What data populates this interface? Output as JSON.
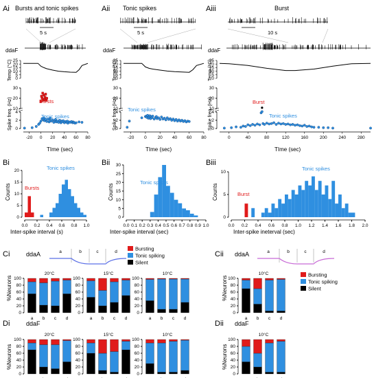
{
  "colors": {
    "burst": "#e01b1b",
    "tonic": "#2f8fe0",
    "silent": "#000000",
    "pointFill": "#2f8fe0",
    "pointStroke": "#0a3f7a",
    "ddaA_trace": "#5b6fe6",
    "ddaA_trace_cii": "#c86bd6"
  },
  "panels": {
    "Ai": {
      "tag": "Ai",
      "title": "Bursts and tonic spikes",
      "scale": "5 s",
      "ddaf": "ddaF",
      "tempLabel": "Temp (°C)",
      "freqLabel": "Spike freq. (Hz)",
      "xlabel": "TIme (sec)",
      "burstsText": "Bursts",
      "tonicText": "Tonic spikes"
    },
    "Aii": {
      "tag": "Aii",
      "title": "Tonic spikes",
      "scale": "5 s",
      "ddaf": "ddaF",
      "tempLabel": "Temp (°C)",
      "freqLabel": "Spike freq. (Hz)",
      "xlabel": "TIme (sec)",
      "tonicText": "Tonic spikes"
    },
    "Aiii": {
      "tag": "Aiii",
      "title": "Burst",
      "scale": "10 s",
      "ddaf": "ddaF",
      "tempLabel": "Temp (°C)",
      "freqLabel": "Spike freq. (Hz)",
      "xlabel": "TIme (sec)",
      "burstText": "Burst",
      "tonicText": "Tonic spikes"
    },
    "Bi": {
      "tag": "Bi",
      "ylabel": "Counts",
      "xlabel": "Inter-spike interval (s)",
      "burstsText": "Bursts",
      "tonicText": "Tonic spikes"
    },
    "Bii": {
      "tag": "Bii",
      "ylabel": "Counts",
      "xlabel": "Inter-spike interval (sec)",
      "tonicText": "Tonic spikes"
    },
    "Biii": {
      "tag": "Biii",
      "ylabel": "Counts",
      "xlabel": "Inter-spike ineterval (sec)",
      "burstText": "Burst",
      "tonicText": "Tonic spikes"
    },
    "Ci": {
      "tag": "Ci",
      "cell": "ddaA"
    },
    "Cii": {
      "tag": "Cii",
      "cell": "ddaA"
    },
    "Di": {
      "tag": "Di",
      "cell": "ddaF"
    },
    "Dii": {
      "tag": "Dii",
      "cell": "ddaF"
    }
  },
  "legend": {
    "bursting": "Bursting",
    "tonic": "Tonic spiking",
    "silent": "Silent"
  },
  "ylabelPct": "%Neurons",
  "phases": [
    "a",
    "b",
    "c",
    "d"
  ],
  "chart_data": [
    {
      "id": "Ai-temp",
      "type": "line",
      "xlim": [
        -30,
        80
      ],
      "ylim": [
        0,
        25
      ],
      "ylabel": "Temp (°C)",
      "x": [
        -30,
        -5,
        0,
        5,
        10,
        20,
        30,
        40,
        50,
        60,
        65,
        70,
        80
      ],
      "y": [
        21,
        21,
        17,
        15,
        13.5,
        11.5,
        10,
        9.2,
        8.7,
        8.5,
        12,
        18,
        21
      ]
    },
    {
      "id": "Ai-freq",
      "type": "scatter",
      "xlim": [
        -30,
        80
      ],
      "ylabel": "Spike freq. (Hz)",
      "xlabel": "TIme (sec)",
      "bursts": {
        "x": [
          0,
          1,
          2,
          3,
          4,
          5,
          6,
          7,
          8,
          9,
          10
        ],
        "y": [
          17,
          22,
          20,
          25,
          18,
          23,
          19,
          21,
          24,
          18,
          20
        ]
      },
      "tonic": {
        "x": [
          -28,
          -15,
          -8,
          -4,
          -2,
          0,
          2,
          4,
          5,
          6,
          8,
          10,
          12,
          14,
          15,
          16,
          18,
          20,
          22,
          24,
          25,
          26,
          28,
          30,
          32,
          34,
          35,
          36,
          38,
          40,
          42,
          44,
          45,
          46,
          48,
          50,
          52,
          54,
          55,
          56,
          58,
          60,
          65,
          70
        ],
        "y": [
          0.1,
          0.2,
          0.5,
          1.0,
          1.3,
          1.8,
          2.4,
          2.1,
          2.6,
          1.9,
          2.2,
          1.7,
          2.3,
          1.6,
          2.0,
          2.5,
          1.8,
          2.1,
          1.5,
          1.9,
          2.2,
          1.6,
          1.8,
          1.5,
          2.0,
          1.4,
          1.8,
          1.6,
          1.9,
          1.4,
          1.7,
          1.5,
          1.8,
          1.3,
          1.6,
          1.5,
          1.7,
          1.4,
          1.6,
          1.5,
          1.3,
          1.4,
          1.6,
          1.5
        ]
      },
      "xticks": [
        -20,
        0,
        20,
        40,
        60,
        80
      ]
    },
    {
      "id": "Aii-temp",
      "type": "line",
      "xlim": [
        -30,
        80
      ],
      "ylim": [
        0,
        25
      ],
      "x": [
        -30,
        -5,
        0,
        5,
        10,
        20,
        30,
        40,
        50,
        60,
        65,
        70,
        80
      ],
      "y": [
        21,
        21,
        16,
        14,
        13,
        11.5,
        10.2,
        9.3,
        8.8,
        8.5,
        12,
        18,
        21
      ]
    },
    {
      "id": "Aii-freq",
      "type": "scatter",
      "xlim": [
        -30,
        80
      ],
      "xticks": [
        -20,
        0,
        20,
        40,
        60,
        80
      ],
      "tonic": {
        "x": [
          -25,
          -22,
          -5,
          0,
          1,
          2,
          3,
          4,
          5,
          6,
          7,
          8,
          9,
          10,
          12,
          14,
          15,
          16,
          18,
          20,
          22,
          24,
          26,
          28,
          30,
          32,
          34,
          36,
          38,
          40,
          42,
          44,
          46,
          48,
          50,
          52,
          54,
          56,
          58,
          60
        ],
        "y": [
          0.3,
          1.8,
          2.6,
          2.9,
          3.0,
          2.7,
          3.2,
          2.5,
          2.8,
          3.1,
          2.4,
          2.9,
          2.6,
          3.0,
          2.3,
          2.7,
          2.9,
          2.4,
          2.6,
          2.2,
          2.8,
          2.3,
          2.5,
          2.1,
          2.6,
          2.2,
          2.4,
          2.0,
          2.3,
          1.9,
          2.2,
          1.8,
          2.1,
          1.8,
          2.0,
          1.7,
          1.9,
          1.6,
          1.8,
          1.7
        ]
      }
    },
    {
      "id": "Aiii-temp",
      "type": "line",
      "xlim": [
        -20,
        300
      ],
      "ylim": [
        0,
        25
      ],
      "x": [
        -20,
        0,
        40,
        80,
        120,
        140,
        180,
        220,
        260,
        300
      ],
      "y": [
        21,
        20.5,
        18,
        14,
        11,
        11,
        13,
        17,
        20.5,
        21
      ]
    },
    {
      "id": "Aiii-freq",
      "type": "scatter",
      "xlim": [
        -20,
        300
      ],
      "xticks": [
        0,
        40,
        80,
        120,
        160,
        200,
        240,
        280
      ],
      "burst": {
        "x": [
          70
        ],
        "y": [
          5.5
        ]
      },
      "tonic": {
        "x": [
          -10,
          5,
          15,
          25,
          30,
          35,
          40,
          45,
          50,
          55,
          60,
          65,
          68,
          70,
          72,
          75,
          80,
          85,
          90,
          95,
          100,
          105,
          110,
          115,
          120,
          125,
          130,
          135,
          140,
          145,
          150,
          155,
          160,
          165,
          170,
          175,
          180,
          190,
          200,
          210,
          220,
          300
        ],
        "y": [
          0.1,
          0.2,
          0.4,
          0.3,
          0.6,
          0.5,
          0.9,
          0.7,
          1.0,
          0.8,
          1.1,
          0.9,
          3.8,
          4.1,
          1.2,
          1.0,
          1.3,
          1.1,
          1.2,
          1.4,
          1.0,
          1.3,
          1.1,
          1.2,
          1.0,
          1.1,
          0.9,
          1.0,
          0.8,
          0.9,
          0.7,
          0.6,
          0.8,
          0.5,
          0.6,
          0.4,
          0.3,
          0.3,
          0.2,
          0.2,
          0.1,
          0.1
        ]
      }
    },
    {
      "id": "Bi",
      "type": "bar",
      "xlim": [
        0,
        1.0
      ],
      "ylim": [
        0,
        20
      ],
      "binWidth": 0.05,
      "burst": {
        "x": [
          0.0,
          0.05,
          0.1
        ],
        "y": [
          2,
          9,
          2
        ]
      },
      "tonic": {
        "x": [
          0.25,
          0.4,
          0.45,
          0.5,
          0.55,
          0.6,
          0.65,
          0.7,
          0.75,
          0.8,
          0.85,
          0.9,
          0.95
        ],
        "y": [
          1,
          2,
          4,
          6,
          10,
          14,
          16,
          12,
          9,
          6,
          4,
          2,
          1
        ]
      },
      "xticks": [
        0.0,
        0.2,
        0.4,
        0.6,
        0.8,
        1.0
      ],
      "yticks": [
        0,
        5,
        10,
        15,
        20
      ]
    },
    {
      "id": "Bii",
      "type": "bar",
      "xlim": [
        0,
        1.0
      ],
      "ylim": [
        0,
        30
      ],
      "binWidth": 0.05,
      "tonic": {
        "x": [
          0.3,
          0.35,
          0.4,
          0.45,
          0.5,
          0.55,
          0.6,
          0.65,
          0.7,
          0.75,
          0.8,
          0.85
        ],
        "y": [
          3,
          13,
          23,
          30,
          18,
          14,
          10,
          8,
          5,
          4,
          2,
          1
        ]
      },
      "xticks": [
        0.0,
        0.1,
        0.2,
        0.3,
        0.4,
        0.5,
        0.6,
        0.7,
        0.8,
        0.9,
        1.0
      ],
      "yticks": [
        0,
        5,
        10,
        15,
        20,
        25,
        30
      ]
    },
    {
      "id": "Biii",
      "type": "bar",
      "xlim": [
        0,
        2.0
      ],
      "ylim": [
        0,
        10
      ],
      "binWidth": 0.05,
      "burst": {
        "x": [
          0.2
        ],
        "y": [
          3
        ]
      },
      "tonic": {
        "x": [
          0.3,
          0.45,
          0.5,
          0.55,
          0.6,
          0.65,
          0.7,
          0.75,
          0.8,
          0.85,
          0.9,
          0.95,
          1.0,
          1.05,
          1.1,
          1.15,
          1.2,
          1.25,
          1.3,
          1.35,
          1.4,
          1.45,
          1.5,
          1.55,
          1.6,
          1.65,
          1.7,
          1.75,
          1.8
        ],
        "y": [
          2,
          1,
          2,
          1,
          3,
          2,
          4,
          3,
          5,
          4,
          6,
          5,
          7,
          6,
          8,
          7,
          9,
          6,
          8,
          5,
          7,
          4,
          8,
          3,
          5,
          2,
          3,
          1,
          1
        ]
      },
      "xticks": [
        0,
        0.2,
        0.4,
        0.6,
        0.8,
        1.0,
        1.2,
        1.4,
        1.6,
        1.8,
        2.0
      ],
      "yticks": [
        0,
        5,
        10
      ]
    },
    {
      "id": "Ci-20",
      "type": "bar",
      "title": "20°C",
      "stack": {
        "silent": [
          55,
          22,
          20,
          55
        ],
        "tonic": [
          35,
          65,
          72,
          40
        ],
        "burst": [
          10,
          13,
          8,
          5
        ]
      }
    },
    {
      "id": "Ci-15",
      "type": "bar",
      "title": "15°C",
      "stack": {
        "silent": [
          45,
          20,
          30,
          50
        ],
        "tonic": [
          48,
          45,
          60,
          45
        ],
        "burst": [
          7,
          35,
          10,
          5
        ]
      }
    },
    {
      "id": "Ci-10",
      "type": "bar",
      "title": "10°C",
      "stack": {
        "silent": [
          35,
          10,
          10,
          30
        ],
        "tonic": [
          62,
          88,
          88,
          68
        ],
        "burst": [
          3,
          2,
          2,
          2
        ]
      }
    },
    {
      "id": "Cii-10",
      "type": "bar",
      "title": "10°C",
      "stack": {
        "silent": [
          70,
          25,
          5,
          5
        ],
        "tonic": [
          25,
          45,
          90,
          92
        ],
        "burst": [
          5,
          30,
          5,
          3
        ]
      }
    },
    {
      "id": "Di-20",
      "type": "bar",
      "title": "20°C",
      "stack": {
        "silent": [
          70,
          20,
          15,
          35
        ],
        "tonic": [
          20,
          65,
          70,
          62
        ],
        "burst": [
          10,
          15,
          15,
          3
        ]
      }
    },
    {
      "id": "Di-15",
      "type": "bar",
      "title": "15°C",
      "stack": {
        "silent": [
          60,
          10,
          5,
          70
        ],
        "tonic": [
          30,
          50,
          60,
          25
        ],
        "burst": [
          10,
          40,
          35,
          5
        ]
      }
    },
    {
      "id": "Di-10",
      "type": "bar",
      "title": "10°C",
      "stack": {
        "silent": [
          30,
          5,
          5,
          10
        ],
        "tonic": [
          60,
          85,
          90,
          88
        ],
        "burst": [
          10,
          10,
          5,
          2
        ]
      }
    },
    {
      "id": "Dii-10",
      "type": "bar",
      "title": "10°C",
      "stack": {
        "silent": [
          35,
          20,
          5,
          5
        ],
        "tonic": [
          45,
          40,
          85,
          90
        ],
        "burst": [
          20,
          40,
          10,
          5
        ]
      }
    }
  ]
}
